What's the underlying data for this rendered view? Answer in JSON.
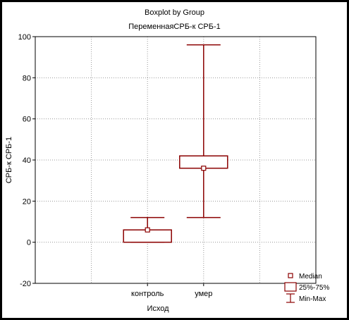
{
  "chart_data": {
    "type": "boxplot",
    "title": "Boxplot by Group",
    "subtitle": "ПеременнаяСРБ-к СРБ-1",
    "xlabel": "Исход",
    "ylabel": "СРБ-к СРБ-1",
    "ylim": [
      -20,
      100
    ],
    "yticks": [
      "-20",
      "0",
      "20",
      "40",
      "60",
      "80",
      "100"
    ],
    "grid": true,
    "legend_position": "bottom-right",
    "series_color": "#8b0000",
    "categories": [
      "контроль",
      "умер"
    ],
    "groups": [
      {
        "category": "контроль",
        "median": 6,
        "q1": 0,
        "q3": 6,
        "min": 0,
        "max": 12
      },
      {
        "category": "умер",
        "median": 36,
        "q1": 36,
        "q3": 42,
        "min": 12,
        "max": 96
      }
    ],
    "legend": [
      {
        "symbol": "median",
        "label": "Median"
      },
      {
        "symbol": "box",
        "label": "25%-75%"
      },
      {
        "symbol": "whisker",
        "label": "Min-Max"
      }
    ]
  }
}
